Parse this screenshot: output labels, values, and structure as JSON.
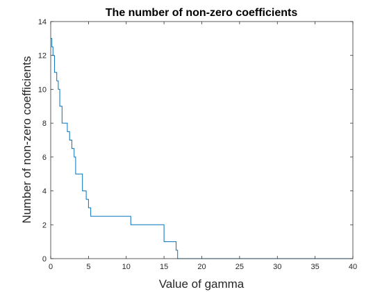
{
  "chart_data": {
    "type": "line",
    "title": "The number of non-zero coefficients",
    "xlabel": "Value of gamma",
    "ylabel": "Number of non-zero coefficients",
    "xlim": [
      0,
      40
    ],
    "ylim": [
      0,
      14
    ],
    "xticks": [
      "0",
      "5",
      "10",
      "15",
      "20",
      "25",
      "30",
      "35",
      "40"
    ],
    "yticks": [
      "0",
      "2",
      "4",
      "6",
      "8",
      "10",
      "12",
      "14"
    ],
    "grid": false,
    "line_color": "#0072BD",
    "series": [
      {
        "x": [
          0,
          0.15,
          0.15,
          0.3,
          0.3,
          0.5,
          0.5,
          0.8,
          0.8,
          1.0,
          1.0,
          1.2,
          1.2,
          1.5,
          1.5,
          2.2,
          2.2,
          2.5,
          2.5,
          2.8,
          2.8,
          3.1,
          3.1,
          3.3,
          3.3,
          4.2,
          4.2,
          4.7,
          4.7,
          5.0,
          5.0,
          5.3,
          5.3,
          10.6,
          10.6,
          10.8,
          10.8,
          15.0,
          15.0,
          15.3,
          15.3,
          16.6,
          16.6,
          16.8,
          16.8,
          40
        ],
        "y": [
          13,
          13,
          12.5,
          12.5,
          12,
          12,
          11,
          11,
          10.5,
          10.5,
          10,
          10,
          9,
          9,
          8,
          8,
          7.5,
          7.5,
          7,
          7,
          6.5,
          6.5,
          6,
          6,
          5,
          5,
          4,
          4,
          3.5,
          3.5,
          3,
          3,
          2.5,
          2.5,
          2,
          2,
          2,
          2,
          1,
          1,
          1,
          1,
          0.5,
          0.5,
          0,
          0
        ]
      }
    ]
  }
}
